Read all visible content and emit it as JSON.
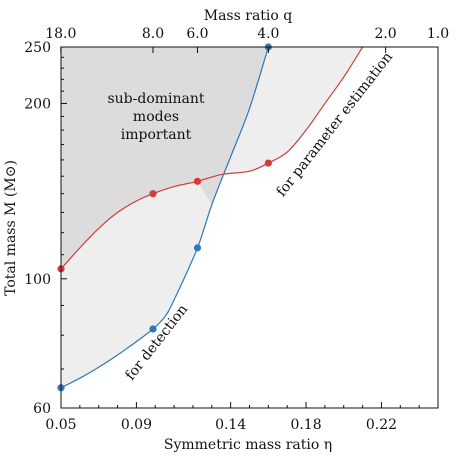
{
  "chart_data": {
    "type": "line",
    "xlabel": "Symmetric mass ratio η",
    "ylabel": "Total mass M (M⊙)",
    "top_xlabel": "Mass ratio q",
    "xlim": [
      0.05,
      0.25
    ],
    "ylim": [
      60,
      250
    ],
    "yscale": "log",
    "x_ticks": [
      0.05,
      0.09,
      0.14,
      0.18,
      0.22
    ],
    "x_tick_labels": [
      "0.05",
      "0.09",
      "0.14",
      "0.18",
      "0.22"
    ],
    "y_ticks": [
      60,
      100,
      200,
      250
    ],
    "y_tick_labels": [
      "60",
      "100",
      "200",
      "250"
    ],
    "top_ticks": [
      {
        "label": "18.0",
        "eta": 0.0499
      },
      {
        "label": "8.0",
        "eta": 0.0988
      },
      {
        "label": "6.0",
        "eta": 0.1224
      },
      {
        "label": "4.0",
        "eta": 0.16
      },
      {
        "label": "2.0",
        "eta": 0.2222
      },
      {
        "label": "1.0",
        "eta": 0.25
      }
    ],
    "series": [
      {
        "name": "for detection",
        "color": "#2f78b3",
        "points": [
          [
            0.05,
            65
          ],
          [
            0.0988,
            82
          ],
          [
            0.1224,
            113
          ],
          [
            0.16,
            250
          ]
        ],
        "curve": [
          [
            0.05,
            65
          ],
          [
            0.06,
            67.5
          ],
          [
            0.07,
            70.5
          ],
          [
            0.08,
            74
          ],
          [
            0.09,
            78
          ],
          [
            0.0988,
            82
          ],
          [
            0.105,
            86
          ],
          [
            0.11,
            92
          ],
          [
            0.1224,
            113
          ],
          [
            0.13,
            134
          ],
          [
            0.14,
            162
          ],
          [
            0.15,
            196
          ],
          [
            0.16,
            250
          ]
        ]
      },
      {
        "name": "for parameter estimation",
        "color": "#d43c3c",
        "points": [
          [
            0.05,
            104
          ],
          [
            0.0988,
            140
          ],
          [
            0.1224,
            147
          ],
          [
            0.16,
            158
          ]
        ],
        "curve": [
          [
            0.05,
            104
          ],
          [
            0.06,
            113
          ],
          [
            0.07,
            122
          ],
          [
            0.08,
            130
          ],
          [
            0.09,
            136
          ],
          [
            0.0988,
            140
          ],
          [
            0.11,
            144
          ],
          [
            0.1224,
            147
          ],
          [
            0.135,
            151
          ],
          [
            0.15,
            153
          ],
          [
            0.16,
            158
          ],
          [
            0.17,
            165
          ],
          [
            0.18,
            180
          ],
          [
            0.19,
            200
          ],
          [
            0.2,
            222
          ],
          [
            0.21,
            250
          ]
        ]
      }
    ],
    "regions": [
      {
        "name": "sub-dominant modes important",
        "fill": "#dcdcdc"
      },
      {
        "name": "light-region",
        "fill": "#eeeeee"
      }
    ],
    "annotations": {
      "subdominant": [
        "sub-dominant",
        "modes",
        "important"
      ],
      "detection": "for detection",
      "estimation": "for parameter estimation"
    },
    "grid": false
  }
}
